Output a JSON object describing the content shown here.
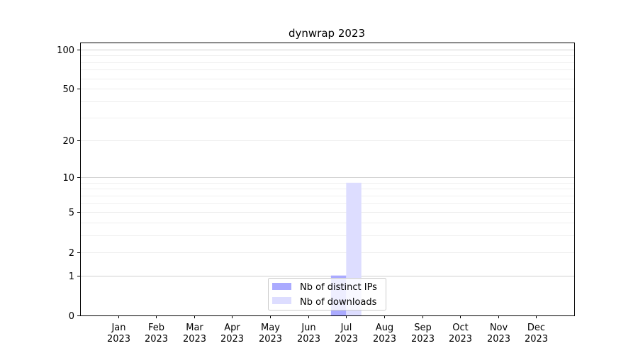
{
  "chart_data": {
    "type": "bar",
    "title": "dynwrap 2023",
    "xlabel": "",
    "ylabel": "",
    "categories": [
      "Jan\n2023",
      "Feb\n2023",
      "Mar\n2023",
      "Apr\n2023",
      "May\n2023",
      "Jun\n2023",
      "Jul\n2023",
      "Aug\n2023",
      "Sep\n2023",
      "Oct\n2023",
      "Nov\n2023",
      "Dec\n2023"
    ],
    "series": [
      {
        "name": "Nb of distinct IPs",
        "color": "#aaaaff",
        "values": [
          0,
          0,
          0,
          0,
          0,
          0,
          1,
          0,
          0,
          0,
          0,
          0
        ]
      },
      {
        "name": "Nb of downloads",
        "color": "#ddddff",
        "values": [
          0,
          0,
          0,
          0,
          0,
          0,
          9,
          0,
          0,
          0,
          0,
          0
        ]
      }
    ],
    "yscale": "log(1+y)",
    "ylim": [
      0,
      113
    ],
    "yticks": [
      0,
      1,
      2,
      5,
      10,
      20,
      50,
      100
    ],
    "grid": true,
    "legend_position": "lower center"
  }
}
